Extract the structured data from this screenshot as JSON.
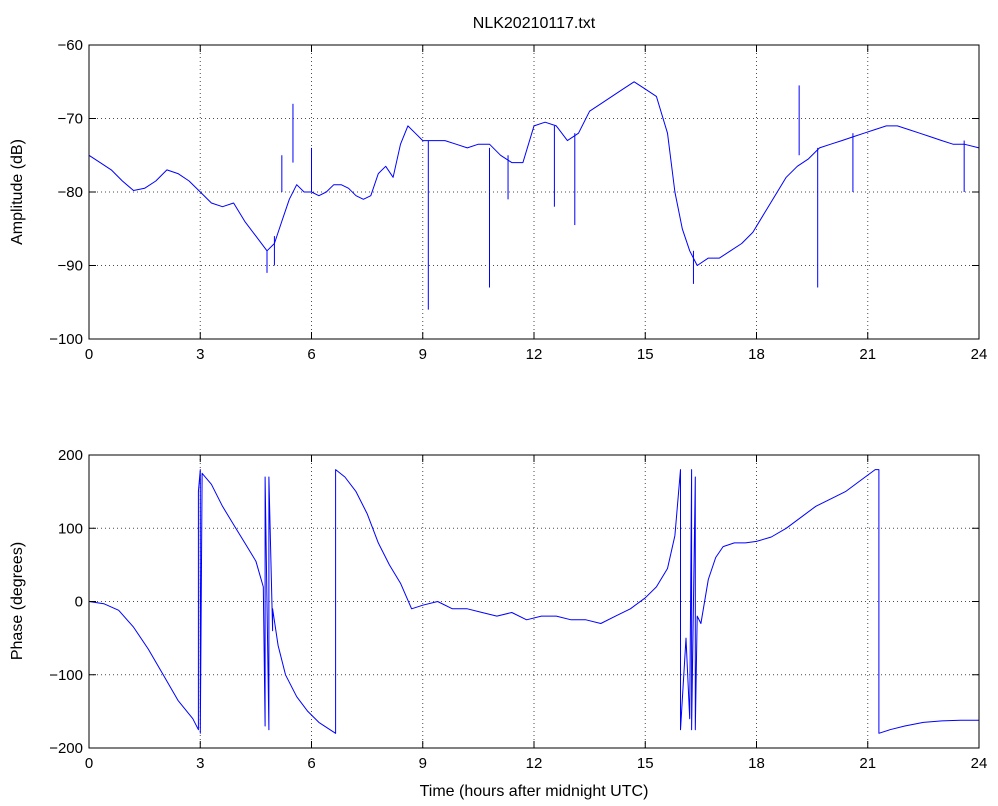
{
  "chart_data": [
    {
      "type": "line",
      "title": "NLK20210117.txt",
      "xlabel": "",
      "ylabel": "Amplitude (dB)",
      "xlim": [
        0,
        24
      ],
      "ylim": [
        -100,
        -60
      ],
      "xticks": [
        "0",
        "3",
        "6",
        "9",
        "12",
        "15",
        "18",
        "21",
        "24"
      ],
      "yticks": [
        "−60",
        "−70",
        "−80",
        "−90",
        "−100"
      ],
      "grid": true,
      "color": "#0000ff",
      "series": [
        {
          "x": [
            0,
            0.3,
            0.6,
            0.9,
            1.2,
            1.5,
            1.8,
            2.1,
            2.4,
            2.7,
            3.0,
            3.3,
            3.6,
            3.9,
            4.2,
            4.5,
            4.8,
            5.0,
            5.2,
            5.4,
            5.6,
            5.8,
            6.0,
            6.2,
            6.4,
            6.6,
            6.8,
            7.0,
            7.2,
            7.4,
            7.6,
            7.8,
            8.0,
            8.2,
            8.4,
            8.6,
            8.8,
            9.0,
            9.3,
            9.6,
            9.9,
            10.2,
            10.5,
            10.8,
            11.1,
            11.4,
            11.7,
            12.0,
            12.3,
            12.6,
            12.9,
            13.2,
            13.5,
            13.8,
            14.1,
            14.4,
            14.7,
            15.0,
            15.3,
            15.6,
            15.8,
            16.0,
            16.2,
            16.4,
            16.7,
            17.0,
            17.3,
            17.6,
            17.9,
            18.2,
            18.5,
            18.8,
            19.1,
            19.4,
            19.7,
            20.0,
            20.3,
            20.6,
            20.9,
            21.2,
            21.5,
            21.8,
            22.1,
            22.4,
            22.7,
            23.0,
            23.3,
            23.6,
            24.0
          ],
          "y": [
            -75,
            -76,
            -77,
            -78.5,
            -79.8,
            -79.5,
            -78.5,
            -77,
            -77.5,
            -78.5,
            -80,
            -81.5,
            -82,
            -81.5,
            -84,
            -86,
            -88,
            -87,
            -84,
            -81,
            -79,
            -80,
            -80,
            -80.5,
            -80,
            -79,
            -79,
            -79.5,
            -80.5,
            -81,
            -80.5,
            -77.5,
            -76.5,
            -78,
            -73.5,
            -71,
            -72,
            -73,
            -73,
            -73,
            -73.5,
            -74,
            -73.5,
            -73.5,
            -75,
            -76,
            -76,
            -71,
            -70.5,
            -71,
            -73,
            -72,
            -69,
            -68,
            -67,
            -66,
            -65,
            -66,
            -67,
            -72,
            -80,
            -85,
            -88,
            -90,
            -89,
            -89,
            -88,
            -87,
            -85.5,
            -83,
            -80.5,
            -78,
            -76.5,
            -75.5,
            -74,
            -73.5,
            -73,
            -72.5,
            -72,
            -71.5,
            -71,
            -71,
            -71.5,
            -72,
            -72.5,
            -73,
            -73.5,
            -73.5,
            -74
          ]
        },
        {
          "x": [
            4.8,
            4.8,
            5.0,
            5.0,
            5.2,
            5.2,
            5.5,
            5.5,
            6.0,
            6.0,
            9.15,
            9.15,
            10.8,
            10.8,
            11.3,
            11.3,
            12.55,
            12.55,
            13.1,
            13.1,
            16.3,
            16.3,
            19.15,
            19.15,
            19.65,
            19.65,
            20.6,
            20.6,
            23.6,
            23.6
          ],
          "y": [
            -88,
            -91,
            -86,
            -90,
            -80,
            -75,
            -76,
            -68,
            -80,
            -74,
            -73,
            -96,
            -74,
            -93,
            -75,
            -81,
            -71,
            -82,
            -72,
            -84.5,
            -88,
            -92.5,
            -75,
            -65.5,
            -74,
            -93,
            -72,
            -80,
            -73,
            -80
          ]
        }
      ]
    },
    {
      "type": "line",
      "title": "",
      "xlabel": "Time (hours after midnight UTC)",
      "ylabel": "Phase (degrees)",
      "xlim": [
        0,
        24
      ],
      "ylim": [
        -200,
        200
      ],
      "xticks": [
        "0",
        "3",
        "6",
        "9",
        "12",
        "15",
        "18",
        "21",
        "24"
      ],
      "yticks": [
        "200",
        "100",
        "0",
        "−100",
        "−200"
      ],
      "grid": true,
      "color": "#0000ff",
      "series": [
        {
          "x": [
            0,
            0.4,
            0.8,
            1.2,
            1.6,
            2.0,
            2.4,
            2.8,
            2.95,
            2.95,
            3.0,
            3.0,
            3.05,
            3.05,
            3.3,
            3.6,
            3.9,
            4.2,
            4.5,
            4.7,
            4.75,
            4.75,
            4.85,
            4.85,
            4.95,
            4.95,
            5.1,
            5.3,
            5.6,
            5.9,
            6.2,
            6.5,
            6.65,
            6.65,
            6.9,
            7.2,
            7.5,
            7.8,
            8.1,
            8.4,
            8.7,
            9.0,
            9.4,
            9.8,
            10.2,
            10.6,
            11.0,
            11.4,
            11.8,
            12.2,
            12.6,
            13.0,
            13.4,
            13.8,
            14.2,
            14.6,
            15.0,
            15.3,
            15.6,
            15.8,
            15.95,
            15.95,
            16.1,
            16.2,
            16.25,
            16.25,
            16.35,
            16.35,
            16.4,
            16.5,
            16.7,
            16.9,
            17.1,
            17.4,
            17.7,
            18.0,
            18.4,
            18.8,
            19.2,
            19.6,
            20.0,
            20.4,
            20.8,
            21.2,
            21.3,
            21.3,
            21.6,
            22.0,
            22.5,
            23.0,
            23.5,
            24.0
          ],
          "y": [
            0,
            -3,
            -12,
            -35,
            -65,
            -100,
            -135,
            -160,
            -175,
            150,
            180,
            -180,
            170,
            175,
            160,
            130,
            105,
            80,
            55,
            20,
            -170,
            170,
            -175,
            170,
            -40,
            -10,
            -60,
            -100,
            -130,
            -150,
            -165,
            -175,
            -180,
            180,
            170,
            150,
            120,
            80,
            50,
            25,
            -10,
            -5,
            0,
            -10,
            -10,
            -15,
            -20,
            -15,
            -25,
            -20,
            -20,
            -25,
            -25,
            -30,
            -20,
            -10,
            5,
            20,
            45,
            90,
            180,
            -175,
            -50,
            -160,
            180,
            -175,
            170,
            -175,
            -20,
            -30,
            30,
            60,
            75,
            80,
            80,
            82,
            88,
            100,
            115,
            130,
            140,
            150,
            165,
            180,
            180,
            -180,
            -175,
            -170,
            -165,
            -163,
            -162,
            -162
          ]
        }
      ]
    }
  ]
}
